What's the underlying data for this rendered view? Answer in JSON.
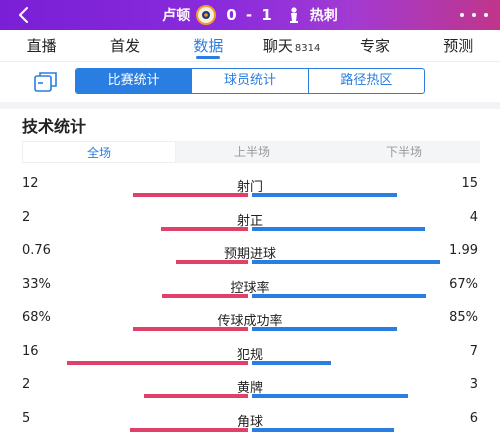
{
  "header": {
    "home_team": "卢顿",
    "score": "0 - 1",
    "away_team": "热刺",
    "colors": {
      "home": "#e0406a",
      "away": "#2a7de1",
      "accent": "#2a7de1"
    }
  },
  "tabs": [
    {
      "label": "直播"
    },
    {
      "label": "首发"
    },
    {
      "label": "数据",
      "active": true
    },
    {
      "label": "聊天",
      "badge": "8314"
    },
    {
      "label": "专家"
    },
    {
      "label": "预测"
    }
  ],
  "subtabs": [
    {
      "label": "比赛统计",
      "active": true
    },
    {
      "label": "球员统计"
    },
    {
      "label": "路径热区"
    }
  ],
  "section": {
    "title": "技术统计",
    "periods": [
      {
        "label": "全场",
        "active": true
      },
      {
        "label": "上半场"
      },
      {
        "label": "下半场"
      }
    ]
  },
  "stats": [
    {
      "name": "射门",
      "home": "12",
      "away": "15",
      "home_share": 0.444,
      "away_share": 0.556
    },
    {
      "name": "射正",
      "home": "2",
      "away": "4",
      "home_share": 0.333,
      "away_share": 0.667
    },
    {
      "name": "预期进球",
      "home": "0.76",
      "away": "1.99",
      "home_share": 0.276,
      "away_share": 0.724
    },
    {
      "name": "控球率",
      "home": "33%",
      "away": "67%",
      "home_share": 0.33,
      "away_share": 0.67
    },
    {
      "name": "传球成功率",
      "home": "68%",
      "away": "85%",
      "home_share": 0.444,
      "away_share": 0.556
    },
    {
      "name": "犯规",
      "home": "16",
      "away": "7",
      "home_share": 0.696,
      "away_share": 0.304
    },
    {
      "name": "黄牌",
      "home": "2",
      "away": "3",
      "home_share": 0.4,
      "away_share": 0.6
    },
    {
      "name": "角球",
      "home": "5",
      "away": "6",
      "home_share": 0.455,
      "away_share": 0.545
    }
  ]
}
